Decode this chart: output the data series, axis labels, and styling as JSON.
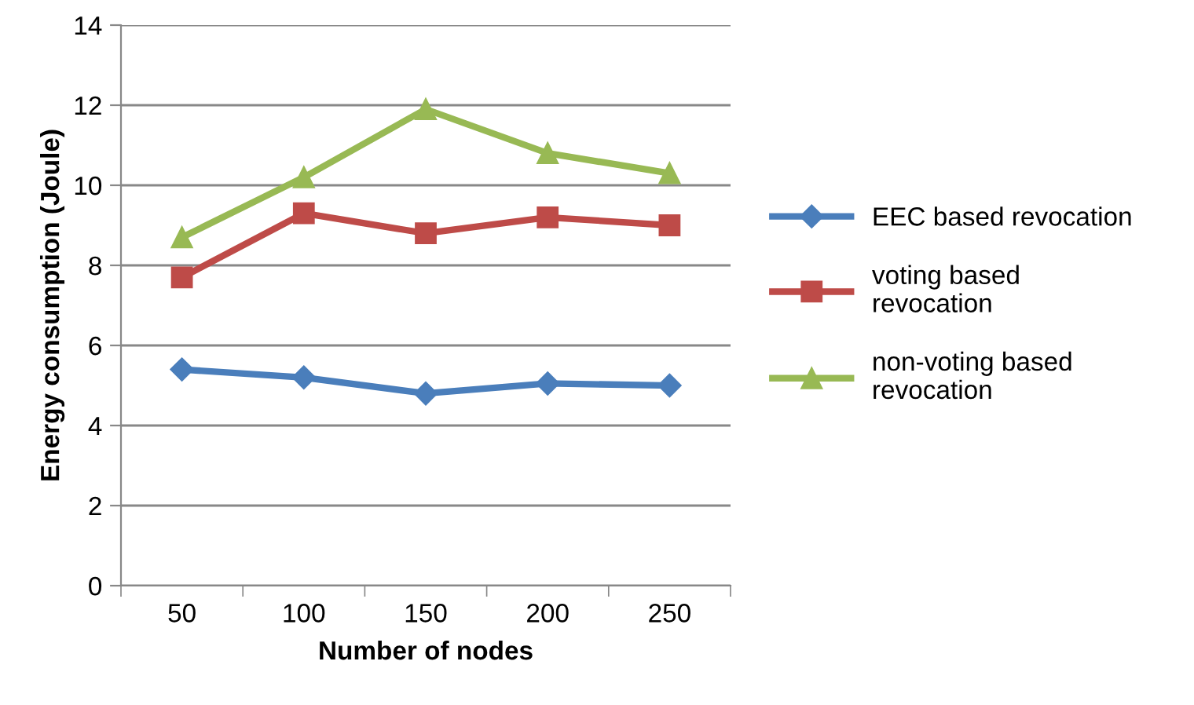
{
  "chart_data": {
    "type": "line",
    "xlabel": "Number of nodes",
    "ylabel": "Energy consumption (Joule)",
    "categories": [
      "50",
      "100",
      "150",
      "200",
      "250"
    ],
    "series": [
      {
        "name": "EEC based revocation",
        "color": "#4a7ebb",
        "marker": "diamond",
        "values": [
          5.4,
          5.2,
          4.8,
          5.05,
          5.0
        ]
      },
      {
        "name": "voting based\nrevocation",
        "color": "#be4b48",
        "marker": "square",
        "values": [
          7.7,
          9.3,
          8.8,
          9.2,
          9.0
        ]
      },
      {
        "name": "non-voting based\nrevocation",
        "color": "#98b954",
        "marker": "triangle",
        "values": [
          8.7,
          10.2,
          11.9,
          10.8,
          10.3
        ]
      }
    ],
    "ylim": [
      0,
      14
    ],
    "yticks": [
      0,
      2,
      4,
      6,
      8,
      10,
      12,
      14
    ],
    "grid": "y",
    "legend": "right",
    "line_style": "solid"
  }
}
